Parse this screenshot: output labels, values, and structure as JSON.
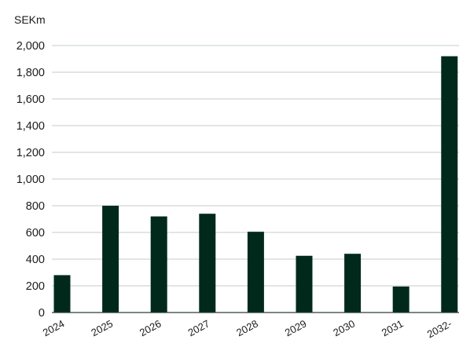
{
  "chart_data": {
    "type": "bar",
    "y_unit_label": "SEKm",
    "categories": [
      "2024",
      "2025",
      "2026",
      "2027",
      "2028",
      "2029",
      "2030",
      "2031",
      "2032-"
    ],
    "values": [
      280,
      800,
      720,
      740,
      605,
      425,
      440,
      195,
      1920
    ],
    "ylim": [
      0,
      2000
    ],
    "y_ticks": [
      "0",
      "200",
      "400",
      "600",
      "800",
      "1,000",
      "1,200",
      "1,400",
      "1,600",
      "1,800",
      "2,000"
    ],
    "y_tick_values": [
      0,
      200,
      400,
      600,
      800,
      1000,
      1200,
      1400,
      1600,
      1800,
      2000
    ],
    "grid": true,
    "legend": "none",
    "bar_color": "#00291c",
    "grid_color": "#cfd8d4",
    "axis_color": "#2f3f39"
  }
}
